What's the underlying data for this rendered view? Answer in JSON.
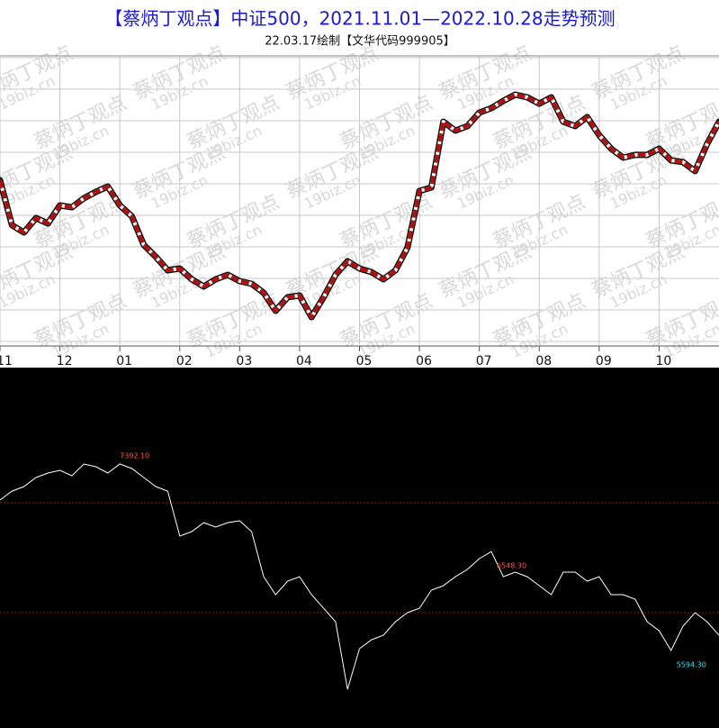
{
  "chart_data": [
    {
      "type": "line",
      "title": "【蔡炳丁观点】中证500，2021.11.01—2022.10.28走势预测",
      "subtitle": "22.03.17绘制【文华代码999905】",
      "watermark": "蔡炳丁观点",
      "watermark_sub": "19biz.cn",
      "xlim": [
        0,
        60
      ],
      "xticks": [
        {
          "value": 0,
          "label": "11"
        },
        {
          "value": 5,
          "label": "12"
        },
        {
          "value": 10,
          "label": "01"
        },
        {
          "value": 15,
          "label": "02"
        },
        {
          "value": 20,
          "label": "03"
        },
        {
          "value": 25,
          "label": "04"
        },
        {
          "value": 30,
          "label": "05"
        },
        {
          "value": 35,
          "label": "06"
        },
        {
          "value": 40,
          "label": "07"
        },
        {
          "value": 45,
          "label": "08"
        },
        {
          "value": 50,
          "label": "09"
        },
        {
          "value": 55,
          "label": "10"
        }
      ],
      "ylim": [
        5000,
        8000
      ],
      "grid": true,
      "series": [
        {
          "color": "#b01010",
          "values": [
            6793,
            6362,
            6293,
            6431,
            6379,
            6552,
            6534,
            6621,
            6681,
            6733,
            6552,
            6448,
            6173,
            6060,
            5931,
            5948,
            5845,
            5776,
            5845,
            5888,
            5828,
            5802,
            5716,
            5543,
            5673,
            5690,
            5483,
            5673,
            5888,
            6017,
            5948,
            5914,
            5845,
            5931,
            6147,
            6690,
            6724,
            7353,
            7267,
            7310,
            7440,
            7483,
            7552,
            7612,
            7586,
            7526,
            7586,
            7353,
            7310,
            7397,
            7224,
            7095,
            7009,
            7035,
            7035,
            7095,
            6983,
            6966,
            6879,
            7138,
            7353
          ]
        }
      ]
    },
    {
      "type": "line",
      "xlim": [
        0,
        60
      ],
      "ylim": [
        4917,
        8217
      ],
      "reference_lines": {
        "color": "#a01818",
        "values": [
          7019,
          5959
        ]
      },
      "series": [
        {
          "color": "#ffffff",
          "values": [
            7045,
            7131,
            7175,
            7262,
            7305,
            7331,
            7279,
            7392,
            7366,
            7305,
            7392.1,
            7349,
            7262,
            7175,
            7131,
            6697,
            6741,
            6827,
            6784,
            6827,
            6845,
            6741,
            6306,
            6133,
            6263,
            6306,
            6133,
            6002,
            5872,
            5221,
            5612,
            5698,
            5742,
            5872,
            5959,
            6002,
            6176,
            6220,
            6306,
            6376,
            6480,
            6548.3,
            6306,
            6350,
            6306,
            6220,
            6133,
            6350,
            6350,
            6263,
            6306,
            6133,
            6133,
            6089,
            5872,
            5785,
            5594.3,
            5829,
            5959,
            5872,
            5742
          ]
        }
      ],
      "annotations": [
        {
          "value": 7392.1,
          "label": "7392.10",
          "color": "#ff5050"
        },
        {
          "value": 6548.3,
          "label": "6548.30",
          "color": "#ff5050"
        },
        {
          "value": 5594.3,
          "label": "5594.30",
          "color": "#40e0f0"
        }
      ]
    }
  ]
}
